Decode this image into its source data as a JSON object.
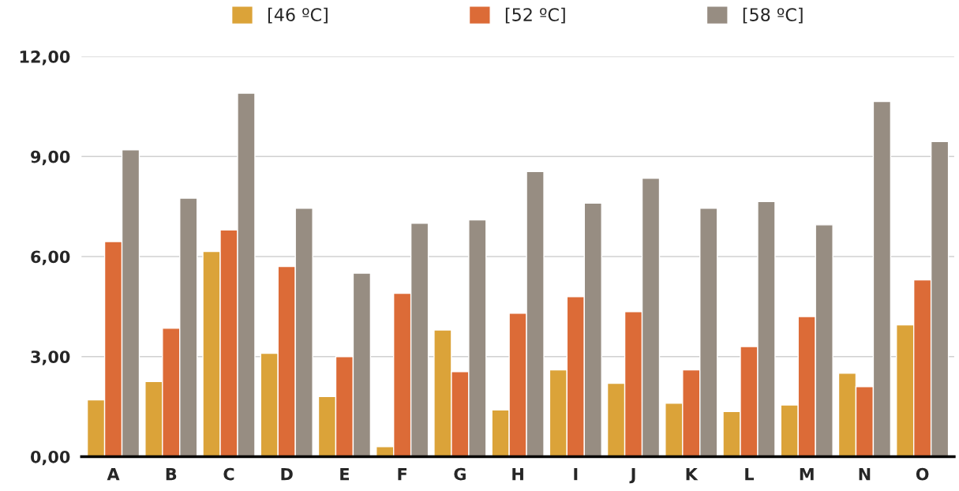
{
  "chart_data": {
    "type": "bar",
    "categories": [
      "A",
      "B",
      "C",
      "D",
      "E",
      "F",
      "G",
      "H",
      "I",
      "J",
      "K",
      "L",
      "M",
      "N",
      "O"
    ],
    "series": [
      {
        "name": "[46 ºC]",
        "color": "#dba339",
        "values": [
          1.7,
          2.25,
          6.15,
          3.1,
          1.8,
          0.3,
          3.8,
          1.4,
          2.6,
          2.2,
          1.6,
          1.35,
          1.55,
          2.5,
          3.95
        ]
      },
      {
        "name": "[52 ºC]",
        "color": "#dc6b37",
        "values": [
          6.45,
          3.85,
          6.8,
          5.7,
          3.0,
          4.9,
          2.55,
          4.3,
          4.8,
          4.35,
          2.6,
          3.3,
          4.2,
          2.1,
          5.3
        ]
      },
      {
        "name": "[58 ºC]",
        "color": "#978d82",
        "values": [
          9.2,
          7.75,
          10.9,
          7.45,
          5.5,
          7.0,
          7.1,
          8.55,
          7.6,
          8.35,
          7.45,
          7.65,
          6.95,
          10.65,
          9.45
        ]
      }
    ],
    "ylim": [
      0,
      12
    ],
    "yticks": [
      {
        "value": 0,
        "label": "0,00"
      },
      {
        "value": 3,
        "label": "3,00"
      },
      {
        "value": 6,
        "label": "6,00"
      },
      {
        "value": 9,
        "label": "9,00"
      },
      {
        "value": 12,
        "label": "12,00"
      }
    ],
    "grid": "y",
    "legend": "top"
  }
}
